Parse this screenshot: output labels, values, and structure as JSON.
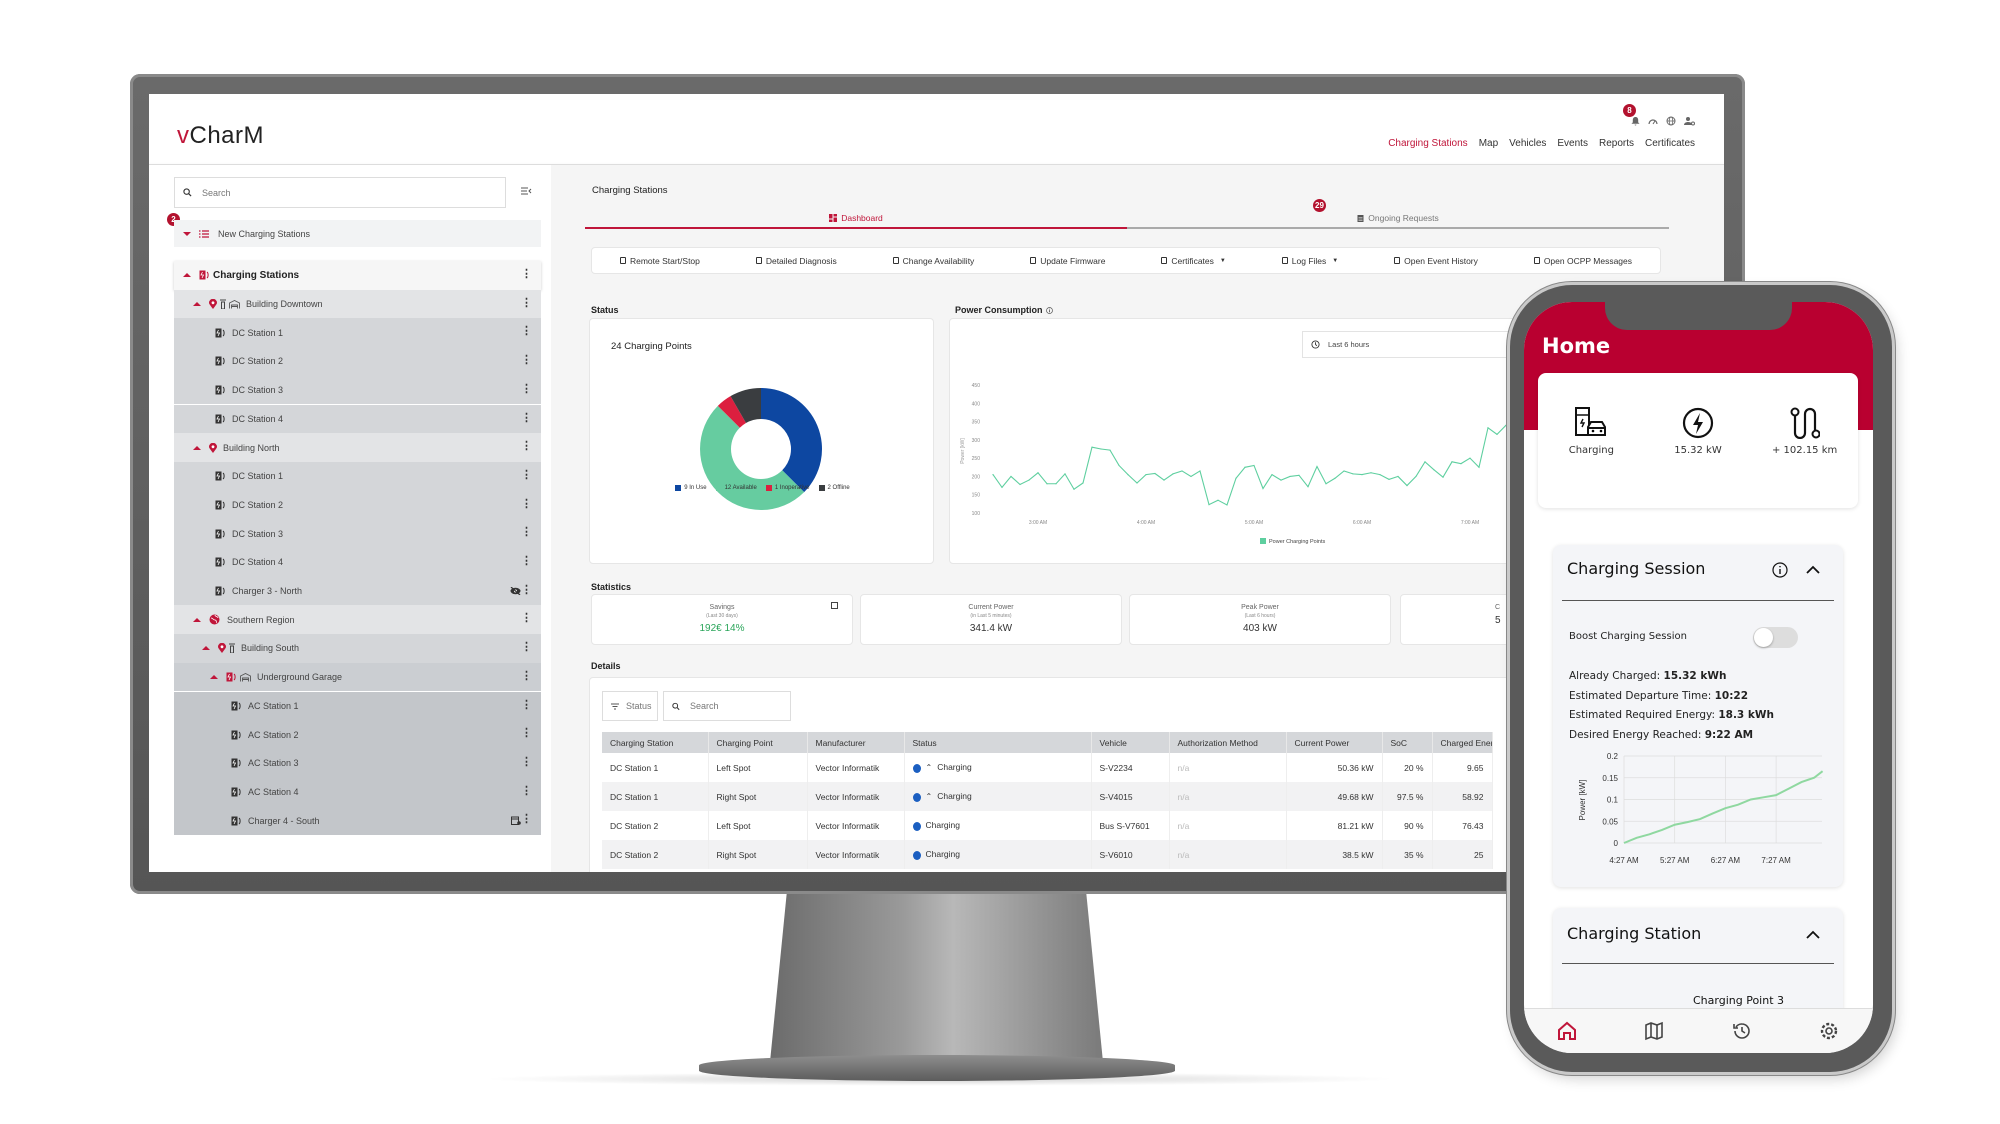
{
  "app": {
    "logo_prefix": "v",
    "logo_rest": "CharM",
    "notification_count": "8"
  },
  "header_icons": [
    "bell-icon",
    "speedometer-icon",
    "globe-icon",
    "user-settings-icon"
  ],
  "nav": [
    {
      "label": "Charging Stations",
      "active": true
    },
    {
      "label": "Map"
    },
    {
      "label": "Vehicles"
    },
    {
      "label": "Events"
    },
    {
      "label": "Reports"
    },
    {
      "label": "Certificates"
    }
  ],
  "sidebar": {
    "search_placeholder": "Search",
    "new_stations": {
      "label": "New Charging Stations",
      "badge": "2"
    },
    "root": {
      "label": "Charging Stations"
    },
    "items": [
      {
        "label": "Building Downtown",
        "level": 1,
        "icons": [
          "pin",
          "tower",
          "garage"
        ],
        "expandable": true
      },
      {
        "label": "DC Station 1",
        "level": 2,
        "icons": [
          "station"
        ]
      },
      {
        "label": "DC Station 2",
        "level": 2,
        "icons": [
          "station"
        ]
      },
      {
        "label": "DC Station 3",
        "level": 2,
        "icons": [
          "station"
        ]
      },
      {
        "label": "DC Station 4",
        "level": 2,
        "icons": [
          "station"
        ]
      },
      {
        "label": "Building North",
        "level": 1,
        "icons": [
          "pin"
        ],
        "expandable": true
      },
      {
        "label": "DC Station 1",
        "level": 2,
        "icons": [
          "station"
        ]
      },
      {
        "label": "DC Station 2",
        "level": 2,
        "icons": [
          "station"
        ]
      },
      {
        "label": "DC Station 3",
        "level": 2,
        "icons": [
          "station"
        ]
      },
      {
        "label": "DC Station 4",
        "level": 2,
        "icons": [
          "station"
        ]
      },
      {
        "label": "Charger 3 - North",
        "level": 2,
        "icons": [
          "station"
        ],
        "extra": "eye-off"
      },
      {
        "label": "Southern Region",
        "level": 1,
        "icons": [
          "globe"
        ],
        "expandable": true
      },
      {
        "label": "Building South",
        "level": 2,
        "icons": [
          "pin",
          "tower"
        ],
        "expandable": true
      },
      {
        "label": "Underground Garage",
        "level": 3,
        "icons": [
          "station-red",
          "garage"
        ],
        "expandable": true
      },
      {
        "label": "AC Station 1",
        "level": 4,
        "icons": [
          "station"
        ]
      },
      {
        "label": "AC Station 2",
        "level": 4,
        "icons": [
          "station"
        ]
      },
      {
        "label": "AC Station 3",
        "level": 4,
        "icons": [
          "station"
        ]
      },
      {
        "label": "AC Station 4",
        "level": 4,
        "icons": [
          "station"
        ]
      },
      {
        "label": "Charger 4 - South",
        "level": 4,
        "icons": [
          "station"
        ],
        "extra": "calendar"
      }
    ]
  },
  "main": {
    "title": "Charging Stations",
    "tabs": [
      {
        "label": "Dashboard",
        "active": true
      },
      {
        "label": "Ongoing Requests",
        "badge": "29"
      }
    ],
    "toolbar": [
      {
        "label": "Remote Start/Stop",
        "icon": "plug-icon"
      },
      {
        "label": "Detailed Diagnosis",
        "icon": "diagnosis-icon"
      },
      {
        "label": "Change Availability",
        "icon": "availability-icon"
      },
      {
        "label": "Update Firmware",
        "icon": "firmware-icon"
      },
      {
        "label": "Certificates",
        "icon": "certificate-icon",
        "dropdown": true
      },
      {
        "label": "Log Files",
        "icon": "log-icon",
        "dropdown": true
      },
      {
        "label": "Open Event History",
        "icon": "external-link-icon"
      },
      {
        "label": "Open OCPP Messages",
        "icon": "external-link-icon"
      }
    ],
    "status_label": "Status",
    "power_label": "Power Consumption",
    "time_range": "Last 6 hours",
    "statistics_label": "Statistics",
    "stats": [
      {
        "title": "Savings",
        "sub": "(Last 30 days)",
        "value": "192€ 14%",
        "color": "#2aa55a"
      },
      {
        "title": "Current Power",
        "sub": "(in Last 5 minutes)",
        "value": "341.4 kW"
      },
      {
        "title": "Peak Power",
        "sub": "(Last 6 hours)",
        "value": "403 kW"
      },
      {
        "title": "C",
        "sub": "",
        "value": "5"
      }
    ],
    "details_label": "Details",
    "filter_label": "Status",
    "search_placeholder": "Search",
    "table": {
      "columns": [
        "Charging Station",
        "Charging Point",
        "Manufacturer",
        "Status",
        "Vehicle",
        "Authorization Method",
        "Current Power",
        "SoC",
        "Charged Energy"
      ],
      "rows": [
        {
          "station": "DC Station 1",
          "point": "Left Spot",
          "manufacturer": "Vector Informatik",
          "status": "Charging",
          "boost": true,
          "vehicle": "S-V2234",
          "auth": "n/a",
          "power": "50.36 kW",
          "soc": "20 %",
          "energy": "9.65"
        },
        {
          "station": "DC Station 1",
          "point": "Right Spot",
          "manufacturer": "Vector Informatik",
          "status": "Charging",
          "boost": true,
          "vehicle": "S-V4015",
          "auth": "n/a",
          "power": "49.68 kW",
          "soc": "97.5 %",
          "energy": "58.92"
        },
        {
          "station": "DC Station 2",
          "point": "Left Spot",
          "manufacturer": "Vector Informatik",
          "status": "Charging",
          "vehicle": "Bus S-V7601",
          "auth": "n/a",
          "power": "81.21 kW",
          "soc": "90 %",
          "energy": "76.43"
        },
        {
          "station": "DC Station 2",
          "point": "Right Spot",
          "manufacturer": "Vector Informatik",
          "status": "Charging",
          "vehicle": "S-V6010",
          "auth": "n/a",
          "power": "38.5 kW",
          "soc": "35 %",
          "energy": "25"
        }
      ]
    }
  },
  "chart_data": [
    {
      "type": "pie",
      "title": "24 Charging Points",
      "donut": true,
      "legend": "bottom",
      "slices": [
        {
          "label": "9 In Use",
          "value": 9,
          "color": "#0d47a1"
        },
        {
          "label": "12 Available",
          "value": 12,
          "color": "#66cca0"
        },
        {
          "label": "1 Inoperative",
          "value": 1,
          "color": "#dc1f3f"
        },
        {
          "label": "2 Offline",
          "value": 2,
          "color": "#3a3d40"
        }
      ]
    },
    {
      "type": "line",
      "ylabel": "Power [kW]",
      "ylim": [
        100,
        450
      ],
      "yticks": [
        100,
        150,
        200,
        250,
        300,
        350,
        400,
        450
      ],
      "xticks": [
        "3:00 AM",
        "4:00 AM",
        "5:00 AM",
        "6:00 AM",
        "7:00 AM"
      ],
      "legend": "bottom",
      "series": [
        {
          "name": "Power Charging Points",
          "color": "#5ecf9f",
          "x": [
            "2:35",
            "2:40",
            "2:45",
            "2:50",
            "2:55",
            "3:00",
            "3:05",
            "3:10",
            "3:15",
            "3:20",
            "3:25",
            "3:30",
            "3:35",
            "3:40",
            "3:45",
            "3:50",
            "3:55",
            "4:00",
            "4:05",
            "4:10",
            "4:15",
            "4:20",
            "4:25",
            "4:30",
            "4:35",
            "4:40",
            "4:45",
            "4:50",
            "4:55",
            "5:00",
            "5:05",
            "5:10",
            "5:15",
            "5:20",
            "5:25",
            "5:30",
            "5:35",
            "5:40",
            "5:45",
            "5:50",
            "5:55",
            "6:00",
            "6:05",
            "6:10",
            "6:15",
            "6:20",
            "6:25",
            "6:30",
            "6:35",
            "6:40",
            "6:45",
            "6:50",
            "6:55",
            "7:00",
            "7:05",
            "7:10",
            "7:15",
            "7:20"
          ],
          "values": [
            205,
            170,
            200,
            178,
            190,
            210,
            180,
            180,
            207,
            165,
            182,
            280,
            275,
            272,
            230,
            205,
            182,
            205,
            208,
            190,
            207,
            215,
            200,
            215,
            123,
            135,
            122,
            195,
            225,
            230,
            167,
            205,
            190,
            200,
            203,
            172,
            227,
            180,
            195,
            215,
            207,
            205,
            210,
            205,
            192,
            200,
            175,
            200,
            240,
            218,
            198,
            240,
            235,
            250,
            225,
            333,
            315,
            340
          ]
        }
      ]
    },
    {
      "type": "line",
      "ylabel": "Power [kW]",
      "ylim": [
        0,
        0.2
      ],
      "yticks": [
        "0",
        "0.05",
        "0.1",
        "0.15",
        "0.2"
      ],
      "xticks": [
        "4:27 AM",
        "5:27 AM",
        "6:27 AM",
        "7:27 AM"
      ],
      "grid": true,
      "series": [
        {
          "color": "#8fd8a0",
          "x": [
            "4:27",
            "4:42",
            "4:57",
            "5:12",
            "5:27",
            "5:42",
            "5:57",
            "6:12",
            "6:27",
            "6:42",
            "6:57",
            "7:12",
            "7:27",
            "7:42",
            "7:57",
            "8:12",
            "8:22"
          ],
          "values": [
            0,
            0.012,
            0.02,
            0.03,
            0.042,
            0.048,
            0.055,
            0.068,
            0.08,
            0.088,
            0.1,
            0.105,
            0.11,
            0.125,
            0.14,
            0.15,
            0.165
          ]
        }
      ]
    }
  ],
  "phone": {
    "title": "Home",
    "summary": [
      {
        "label": "Charging",
        "icon": "charging-car-icon"
      },
      {
        "label": "15.32 kW",
        "icon": "lightning-icon"
      },
      {
        "label": "+ 102.15 km",
        "icon": "route-icon"
      }
    ],
    "session": {
      "title": "Charging Session",
      "boost_label": "Boost Charging Session",
      "boost_on": false,
      "facts": [
        {
          "label": "Already Charged: ",
          "value": "15.32 kWh"
        },
        {
          "label": "Estimated Departure Time: ",
          "value": "10:22"
        },
        {
          "label": "Estimated Required Energy: ",
          "value": "18.3 kWh"
        },
        {
          "label": "Desired Energy Reached: ",
          "value": "9:22 AM"
        }
      ]
    },
    "station": {
      "title": "Charging Station",
      "point": "Charging Point 3"
    },
    "bottom_nav": [
      {
        "name": "home",
        "active": true
      },
      {
        "name": "map"
      },
      {
        "name": "history"
      },
      {
        "name": "settings"
      }
    ],
    "accent": "#b90030"
  }
}
